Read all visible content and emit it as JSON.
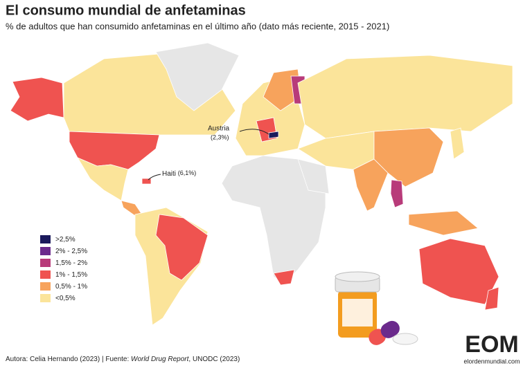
{
  "title": "El consumo mundial de anfetaminas",
  "subtitle": "% de adultos que han consumido anfetaminas en el último año (dato más reciente, 2015 - 2021)",
  "legend": [
    {
      "label": ">2,5%",
      "color": "#1b1a5c"
    },
    {
      "label": "2% - 2,5%",
      "color": "#6b2a8c"
    },
    {
      "label": "1,5% - 2%",
      "color": "#b83b7a"
    },
    {
      "label": "1% - 1,5%",
      "color": "#ef5350"
    },
    {
      "label": "0,5% - 1%",
      "color": "#f7a35c"
    },
    {
      "label": "<0,5%",
      "color": "#fbe49a"
    }
  ],
  "no_data_color": "#e6e6e6",
  "annotations": [
    {
      "label": "Austria",
      "value": "(2,3%)"
    },
    {
      "label": "Haiti",
      "value": "(6,1%)"
    }
  ],
  "footer": {
    "prefix": "Autora: Celia Hernando (2023) | Fuente: ",
    "source": "World Drug Report",
    "suffix": ", UNODC (2023)"
  },
  "logo": {
    "mark": "EOM",
    "site": "elordenmundial.com"
  }
}
